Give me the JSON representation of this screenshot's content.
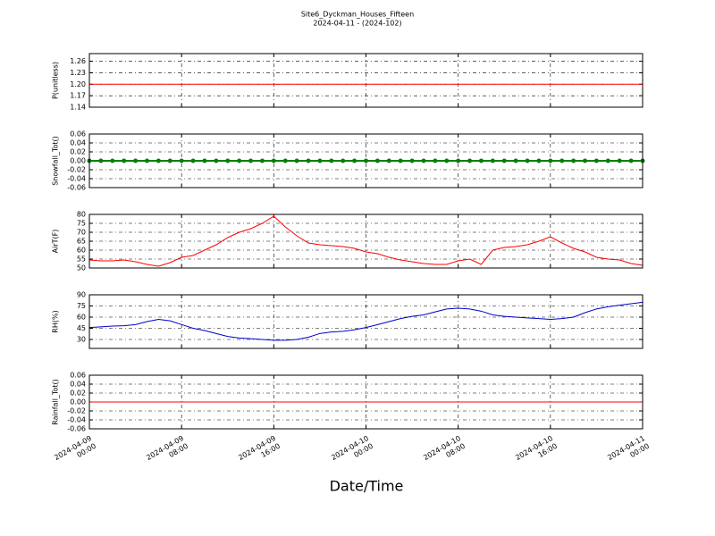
{
  "title": "Site6_Dyckman_Houses_Fifteen",
  "subtitle": "2024-04-11 - (2024-102)",
  "xlabel": "Date/Time",
  "xlim": [
    "2024-04-09 00:00",
    "2024-04-11 00:00"
  ],
  "xticks": [
    {
      "value": "2024-04-09 00:00",
      "label": "2024-04-09\n00:00"
    },
    {
      "value": "2024-04-09 08:00",
      "label": "2024-04-09\n08:00"
    },
    {
      "value": "2024-04-09 16:00",
      "label": "2024-04-09\n16:00"
    },
    {
      "value": "2024-04-10 00:00",
      "label": "2024-04-10\n00:00"
    },
    {
      "value": "2024-04-10 08:00",
      "label": "2024-04-10\n08:00"
    },
    {
      "value": "2024-04-10 16:00",
      "label": "2024-04-10\n16:00"
    },
    {
      "value": "2024-04-11 00:00",
      "label": "2024-04-11\n00:00"
    }
  ],
  "x": [
    "2024-04-09 00:00",
    "2024-04-09 01:00",
    "2024-04-09 02:00",
    "2024-04-09 03:00",
    "2024-04-09 04:00",
    "2024-04-09 05:00",
    "2024-04-09 06:00",
    "2024-04-09 07:00",
    "2024-04-09 08:00",
    "2024-04-09 09:00",
    "2024-04-09 10:00",
    "2024-04-09 11:00",
    "2024-04-09 12:00",
    "2024-04-09 13:00",
    "2024-04-09 14:00",
    "2024-04-09 15:00",
    "2024-04-09 16:00",
    "2024-04-09 17:00",
    "2024-04-09 18:00",
    "2024-04-09 19:00",
    "2024-04-09 20:00",
    "2024-04-09 21:00",
    "2024-04-09 22:00",
    "2024-04-09 23:00",
    "2024-04-10 00:00",
    "2024-04-10 01:00",
    "2024-04-10 02:00",
    "2024-04-10 03:00",
    "2024-04-10 04:00",
    "2024-04-10 05:00",
    "2024-04-10 06:00",
    "2024-04-10 07:00",
    "2024-04-10 08:00",
    "2024-04-10 09:00",
    "2024-04-10 10:00",
    "2024-04-10 11:00",
    "2024-04-10 12:00",
    "2024-04-10 13:00",
    "2024-04-10 14:00",
    "2024-04-10 15:00",
    "2024-04-10 16:00",
    "2024-04-10 17:00",
    "2024-04-10 18:00",
    "2024-04-10 19:00",
    "2024-04-10 20:00",
    "2024-04-10 21:00",
    "2024-04-10 22:00",
    "2024-04-10 23:00",
    "2024-04-11 00:00"
  ],
  "chart_data": [
    {
      "type": "line",
      "ylabel": "P(unitless)",
      "color": "#ff0000",
      "grid": true,
      "ylim": [
        1.14,
        1.28
      ],
      "yticks": [
        1.14,
        1.17,
        {
          "value": 1.2,
          "label": "1.20"
        },
        1.23,
        1.26
      ],
      "values": [
        1.2,
        1.2,
        1.2,
        1.2,
        1.2,
        1.2,
        1.2,
        1.2,
        1.2,
        1.2,
        1.2,
        1.2,
        1.2,
        1.2,
        1.2,
        1.2,
        1.2,
        1.2,
        1.2,
        1.2,
        1.2,
        1.2,
        1.2,
        1.2,
        1.2,
        1.2,
        1.2,
        1.2,
        1.2,
        1.2,
        1.2,
        1.2,
        1.2,
        1.2,
        1.2,
        1.2,
        1.2,
        1.2,
        1.2,
        1.2,
        1.2,
        1.2,
        1.2,
        1.2,
        1.2,
        1.2,
        1.2,
        1.2,
        1.2
      ]
    },
    {
      "type": "dots",
      "ylabel": "Snowfall_Tot()",
      "color": "#008000",
      "grid": true,
      "ylim": [
        -0.06,
        0.06
      ],
      "yticks": [
        -0.06,
        -0.04,
        -0.02,
        {
          "value": 0,
          "label": "0.00"
        },
        0.02,
        0.04,
        0.06
      ],
      "values": [
        0,
        0,
        0,
        0,
        0,
        0,
        0,
        0,
        0,
        0,
        0,
        0,
        0,
        0,
        0,
        0,
        0,
        0,
        0,
        0,
        0,
        0,
        0,
        0,
        0,
        0,
        0,
        0,
        0,
        0,
        0,
        0,
        0,
        0,
        0,
        0,
        0,
        0,
        0,
        0,
        0,
        0,
        0,
        0,
        0,
        0,
        0,
        0,
        0
      ]
    },
    {
      "type": "line",
      "ylabel": "AirT(F)",
      "color": "#ff0000",
      "grid": true,
      "ylim": [
        50,
        80
      ],
      "yticks": [
        50,
        55,
        60,
        65,
        70,
        75,
        80
      ],
      "values": [
        54.5,
        54,
        54,
        54.5,
        53.5,
        52,
        51,
        53,
        56,
        57,
        60,
        63,
        67,
        70,
        72,
        75,
        79,
        73,
        68,
        64,
        63,
        62.5,
        62,
        61,
        59,
        58,
        56,
        54.5,
        53.5,
        52.5,
        52,
        52,
        54,
        55,
        52,
        60,
        61.5,
        62,
        63,
        65,
        67.5,
        64,
        61,
        59,
        56,
        55,
        54.5,
        52.5,
        51.5
      ]
    },
    {
      "type": "line",
      "ylabel": "RH(%)",
      "color": "#0000cc",
      "grid": true,
      "ylim": [
        18,
        90
      ],
      "yticks": [
        30,
        45,
        60,
        75,
        90
      ],
      "values": [
        46,
        47,
        48,
        48.5,
        50,
        54,
        57,
        55,
        50,
        45,
        42,
        38,
        34,
        32,
        31,
        30,
        29,
        29,
        30,
        33,
        38,
        40,
        41,
        43,
        46,
        50,
        54,
        58,
        61,
        63,
        67,
        71,
        72,
        71,
        68,
        63,
        61,
        60,
        59,
        58,
        57,
        58,
        60,
        66,
        71,
        74,
        76,
        78,
        80
      ]
    },
    {
      "type": "line",
      "ylabel": "Rainfall_Tot()",
      "color": "#ff0000",
      "grid": true,
      "ylim": [
        -0.06,
        0.06
      ],
      "yticks": [
        -0.06,
        -0.04,
        -0.02,
        {
          "value": 0,
          "label": "0.00"
        },
        0.02,
        0.04,
        0.06
      ],
      "values": [
        0,
        0,
        0,
        0,
        0,
        0,
        0,
        0,
        0,
        0,
        0,
        0,
        0,
        0,
        0,
        0,
        0,
        0,
        0,
        0,
        0,
        0,
        0,
        0,
        0,
        0,
        0,
        0,
        0,
        0,
        0,
        0,
        0,
        0,
        0,
        0,
        0,
        0,
        0,
        0,
        0,
        0,
        0,
        0,
        0,
        0,
        0,
        0,
        0
      ]
    }
  ]
}
